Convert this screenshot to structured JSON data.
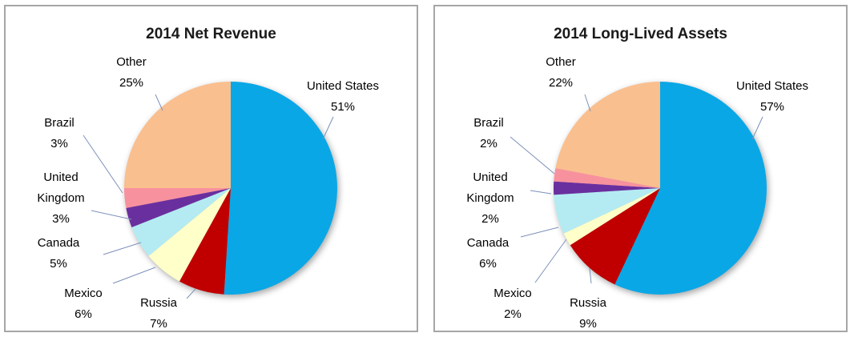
{
  "chart_data": [
    {
      "type": "pie",
      "title": "2014 Net Revenue",
      "unit": "%",
      "start_angle_deg": 0,
      "direction": "clockwise",
      "labels": [
        "United States",
        "Russia",
        "Mexico",
        "Canada",
        "United Kingdom",
        "Brazil",
        "Other"
      ],
      "values": [
        51,
        7,
        6,
        5,
        3,
        3,
        25
      ],
      "colors": [
        "#0AA7E6",
        "#C00000",
        "#FFFFC9",
        "#B4EBF3",
        "#6A2F9F",
        "#F8919E",
        "#FABF8F"
      ],
      "legend_position": "none",
      "data_labels": [
        "United States 51%",
        "Russia 7%",
        "Mexico 6%",
        "Canada 5%",
        "United Kingdom 3%",
        "Brazil 3%",
        "Other 25%"
      ]
    },
    {
      "type": "pie",
      "title": "2014 Long-Lived Assets",
      "unit": "%",
      "start_angle_deg": 0,
      "direction": "clockwise",
      "labels": [
        "United States",
        "Russia",
        "Mexico",
        "Canada",
        "United Kingdom",
        "Brazil",
        "Other"
      ],
      "values": [
        57,
        9,
        2,
        6,
        2,
        2,
        22
      ],
      "colors": [
        "#0AA7E6",
        "#C00000",
        "#FFFFC9",
        "#B4EBF3",
        "#6A2F9F",
        "#F8919E",
        "#FABF8F"
      ],
      "legend_position": "none",
      "data_labels": [
        "United States 57%",
        "Russia 9%",
        "Mexico 2%",
        "Canada 6%",
        "United Kingdom 2%",
        "Brazil 2%",
        "Other 22%"
      ]
    }
  ],
  "styles": {
    "leader_line_color": "#7D90BA",
    "panel_border_color": "#A6A6A6",
    "title_color": "#1A1A1A",
    "label_color": "#000000"
  }
}
